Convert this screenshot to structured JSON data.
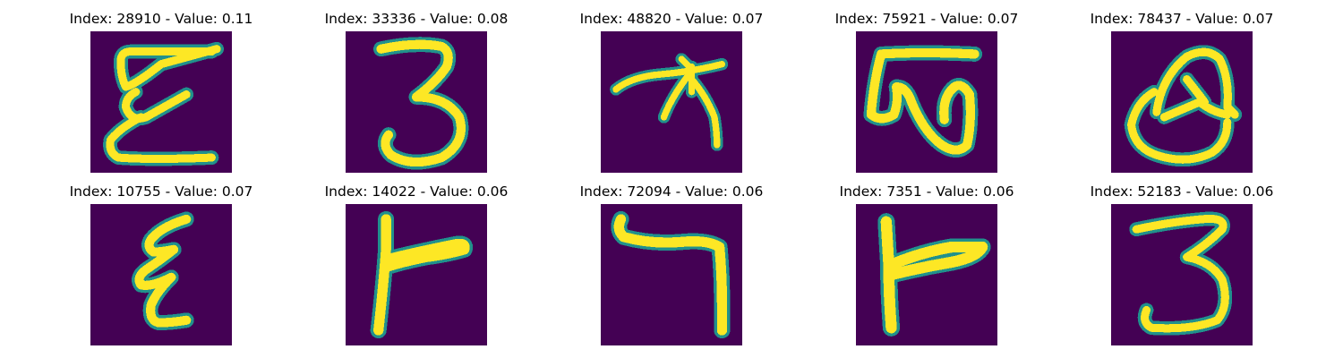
{
  "figure": {
    "background": "#ffffff",
    "colors": {
      "image_background": "#440154",
      "stroke_core": "#fde725",
      "stroke_mid": "#5ec962",
      "stroke_edge": "#21918c"
    },
    "items": [
      {
        "title": "Index: 28910 - Value: 0.11",
        "glyph": "loopy-E"
      },
      {
        "title": "Index: 33336 - Value: 0.08",
        "glyph": "three"
      },
      {
        "title": "Index: 48820 - Value: 0.07",
        "glyph": "shaped-A"
      },
      {
        "title": "Index: 75921 - Value: 0.07",
        "glyph": "curled-W"
      },
      {
        "title": "Index: 78437 - Value: 0.07",
        "glyph": "looped-Q"
      },
      {
        "title": "Index: 10755 - Value: 0.07",
        "glyph": "small-epsilon"
      },
      {
        "title": "Index: 14022 - Value: 0.06",
        "glyph": "T-right-1"
      },
      {
        "title": "Index: 72094 - Value: 0.06",
        "glyph": "seven"
      },
      {
        "title": "Index: 7351 - Value: 0.06",
        "glyph": "T-right-2"
      },
      {
        "title": "Index: 52183 - Value: 0.06",
        "glyph": "three-alt"
      }
    ]
  }
}
